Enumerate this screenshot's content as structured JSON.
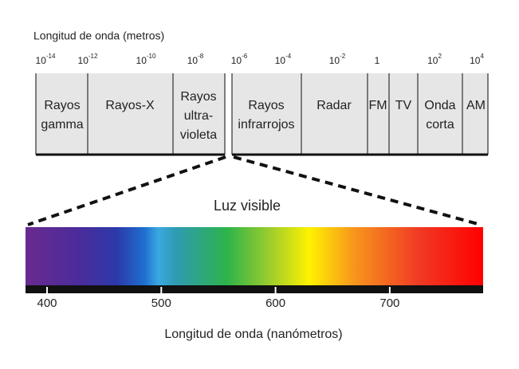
{
  "top_axis": {
    "title": "Longitud de onda (metros)",
    "ticks": [
      {
        "base": "10",
        "exp": "-14"
      },
      {
        "base": "10",
        "exp": "-12"
      },
      {
        "base": "10",
        "exp": "-10"
      },
      {
        "base": "10",
        "exp": "-8"
      },
      {
        "base": "10",
        "exp": "-6"
      },
      {
        "base": "10",
        "exp": "-4"
      },
      {
        "base": "10",
        "exp": "-2"
      },
      {
        "base": "1"
      },
      {
        "base": "10",
        "exp": "2"
      },
      {
        "base": "10",
        "exp": "4"
      }
    ]
  },
  "bands": [
    {
      "lines": [
        "Rayos",
        "gamma"
      ]
    },
    {
      "lines": [
        "Rayos-X"
      ]
    },
    {
      "lines": [
        "Rayos",
        "ultra-",
        "violeta"
      ]
    },
    {
      "lines": [
        "Rayos",
        "infrarrojos"
      ]
    },
    {
      "lines": [
        "Radar"
      ]
    },
    {
      "lines": [
        "FM"
      ]
    },
    {
      "lines": [
        "TV"
      ]
    },
    {
      "lines": [
        "Onda",
        "corta"
      ]
    },
    {
      "lines": [
        "AM"
      ]
    }
  ],
  "visible": {
    "title": "Luz visible",
    "ticks": [
      400,
      500,
      600,
      700
    ],
    "axis_title": "Longitud de onda (nanómetros)"
  }
}
